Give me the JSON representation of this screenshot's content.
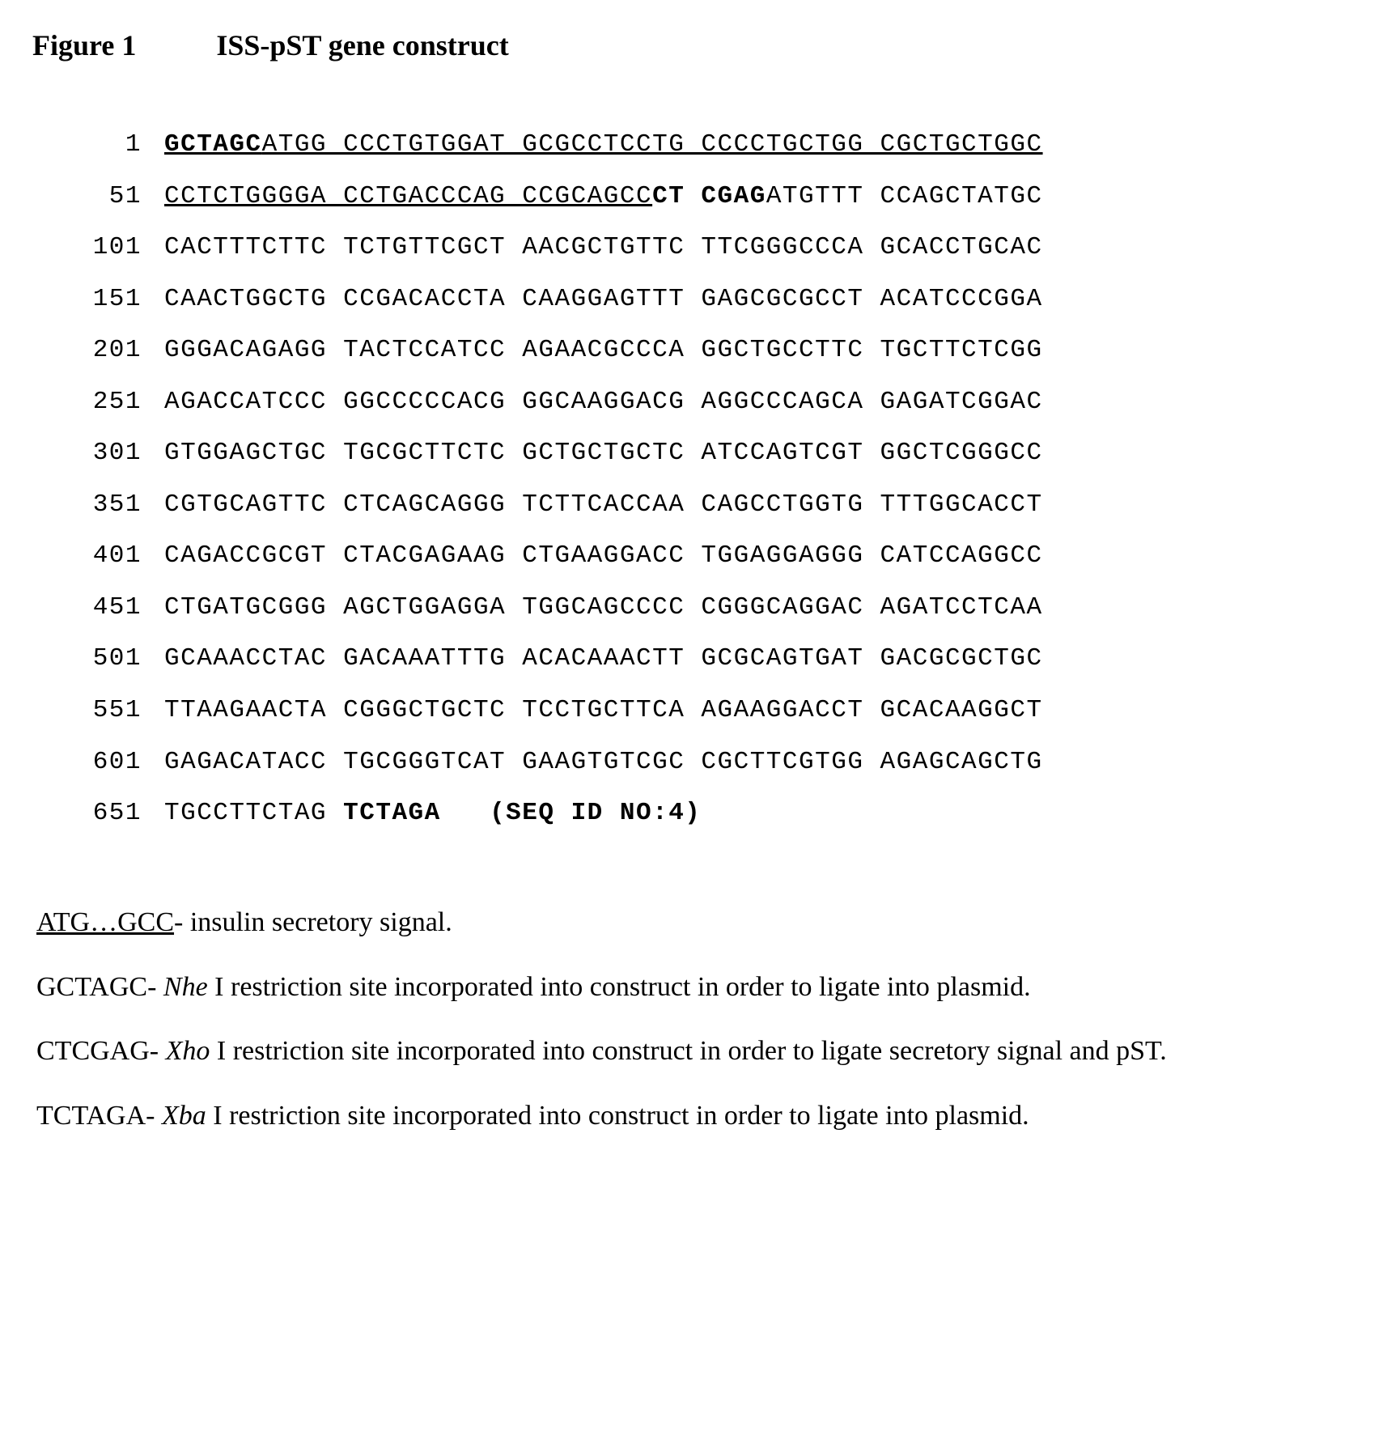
{
  "figure": {
    "label": "Figure 1",
    "title": "ISS-pST gene construct"
  },
  "sequence": {
    "seq_id_label": "(SEQ ID NO:4)",
    "lines": [
      {
        "pos": "1",
        "runs": [
          {
            "text": "GCTAGC",
            "bold": true,
            "under": true
          },
          {
            "text": "ATGG CCCTGTGGAT GCGCCTCCTG CCCCTGCTGG CGCTGCTGGC",
            "bold": false,
            "under": true
          }
        ]
      },
      {
        "pos": "51",
        "runs": [
          {
            "text": "CCTCTGGGGA CCTGACCCAG CCGCAGCC",
            "bold": false,
            "under": true
          },
          {
            "text": "CT CGAG",
            "bold": true,
            "under": false
          },
          {
            "text": "ATGTTT CCAGCTATGC",
            "bold": false,
            "under": false
          }
        ]
      },
      {
        "pos": "101",
        "runs": [
          {
            "text": "CACTTTCTTC TCTGTTCGCT AACGCTGTTC TTCGGGCCCA GCACCTGCAC",
            "bold": false,
            "under": false
          }
        ]
      },
      {
        "pos": "151",
        "runs": [
          {
            "text": "CAACTGGCTG CCGACACCTA CAAGGAGTTT GAGCGCGCCT ACATCCCGGA",
            "bold": false,
            "under": false
          }
        ]
      },
      {
        "pos": "201",
        "runs": [
          {
            "text": "GGGACAGAGG TACTCCATCC AGAACGCCCA GGCTGCCTTC TGCTTCTCGG",
            "bold": false,
            "under": false
          }
        ]
      },
      {
        "pos": "251",
        "runs": [
          {
            "text": "AGACCATCCC GGCCCCCACG GGCAAGGACG AGGCCCAGCA GAGATCGGAC",
            "bold": false,
            "under": false
          }
        ]
      },
      {
        "pos": "301",
        "runs": [
          {
            "text": "GTGGAGCTGC TGCGCTTCTC GCTGCTGCTC ATCCAGTCGT GGCTCGGGCC",
            "bold": false,
            "under": false
          }
        ]
      },
      {
        "pos": "351",
        "runs": [
          {
            "text": "CGTGCAGTTC CTCAGCAGGG TCTTCACCAA CAGCCTGGTG TTTGGCACCT",
            "bold": false,
            "under": false
          }
        ]
      },
      {
        "pos": "401",
        "runs": [
          {
            "text": "CAGACCGCGT CTACGAGAAG CTGAAGGACC TGGAGGAGGG CATCCAGGCC",
            "bold": false,
            "under": false
          }
        ]
      },
      {
        "pos": "451",
        "runs": [
          {
            "text": "CTGATGCGGG AGCTGGAGGA TGGCAGCCCC CGGGCAGGAC AGATCCTCAA",
            "bold": false,
            "under": false
          }
        ]
      },
      {
        "pos": "501",
        "runs": [
          {
            "text": "GCAAACCTAC GACAAATTTG ACACAAACTT GCGCAGTGAT GACGCGCTGC",
            "bold": false,
            "under": false
          }
        ]
      },
      {
        "pos": "551",
        "runs": [
          {
            "text": "TTAAGAACTA CGGGCTGCTC TCCTGCTTCA AGAAGGACCT GCACAAGGCT",
            "bold": false,
            "under": false
          }
        ]
      },
      {
        "pos": "601",
        "runs": [
          {
            "text": "GAGACATACC TGCGGGTCAT GAAGTGTCGC CGCTTCGTGG AGAGCAGCTG",
            "bold": false,
            "under": false
          }
        ]
      },
      {
        "pos": "651",
        "runs": [
          {
            "text": "TGCCTTCTAG ",
            "bold": false,
            "under": false
          },
          {
            "text": "TCTAGA   (SEQ ID NO:4)",
            "bold": true,
            "under": false
          }
        ]
      }
    ]
  },
  "legend": {
    "line1_prefix": "ATG…GCC",
    "line1_rest": "- insulin secretory signal.",
    "line2_pre": "GCTAGC- ",
    "line2_ital": "Nhe",
    "line2_rest": " I restriction site incorporated into construct in order to ligate into plasmid.",
    "line3_pre": "CTCGAG- ",
    "line3_ital": "Xho",
    "line3_rest": " I restriction site incorporated into construct in order to ligate secretory signal and pST.",
    "line4_pre": "TCTAGA- ",
    "line4_ital": "Xba",
    "line4_rest": " I restriction  site incorporated into construct in order to ligate into plasmid."
  }
}
